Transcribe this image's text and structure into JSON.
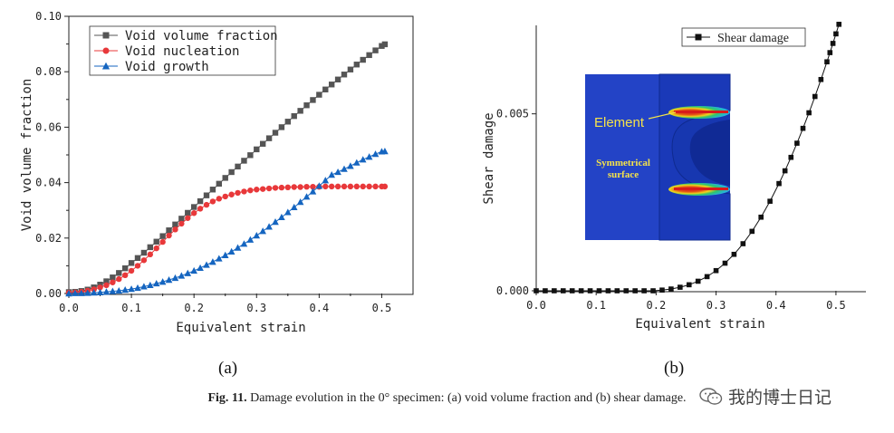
{
  "caption": {
    "fig_label": "Fig. 11.",
    "text": "Damage evolution in the 0° specimen: (a) void volume fraction and (b) shear damage."
  },
  "panel_labels": {
    "a": "(a)",
    "b": "(b)"
  },
  "watermark": {
    "text": "我的博士日记",
    "icon": "wechat-icon"
  },
  "chart_data": [
    {
      "type": "line",
      "xlabel": "Equivalent strain",
      "ylabel": "Void volume fraction",
      "xlim": [
        0.0,
        0.55
      ],
      "ylim": [
        0.0,
        0.1
      ],
      "xticks": [
        "0.0",
        "0.1",
        "0.2",
        "0.3",
        "0.4",
        "0.5"
      ],
      "yticks": [
        "0.00",
        "0.02",
        "0.04",
        "0.06",
        "0.08",
        "0.10"
      ],
      "legend_position": "top-left",
      "series": [
        {
          "name": "Void volume fraction",
          "color": "#555555",
          "marker": "square",
          "x": [
            0,
            0.01,
            0.02,
            0.03,
            0.04,
            0.05,
            0.06,
            0.07,
            0.08,
            0.09,
            0.1,
            0.11,
            0.12,
            0.13,
            0.14,
            0.15,
            0.16,
            0.17,
            0.18,
            0.19,
            0.2,
            0.21,
            0.22,
            0.23,
            0.24,
            0.25,
            0.26,
            0.27,
            0.28,
            0.29,
            0.3,
            0.31,
            0.32,
            0.33,
            0.34,
            0.35,
            0.36,
            0.37,
            0.38,
            0.39,
            0.4,
            0.41,
            0.42,
            0.43,
            0.44,
            0.45,
            0.46,
            0.47,
            0.48,
            0.49,
            0.5,
            0.505
          ],
          "y": [
            0.0005,
            0.0006,
            0.0009,
            0.0014,
            0.0022,
            0.0032,
            0.0044,
            0.0058,
            0.0074,
            0.0091,
            0.011,
            0.0128,
            0.0147,
            0.0167,
            0.0187,
            0.0207,
            0.0228,
            0.0249,
            0.027,
            0.0291,
            0.0312,
            0.0333,
            0.0354,
            0.0375,
            0.0396,
            0.0417,
            0.0438,
            0.0458,
            0.0479,
            0.0499,
            0.052,
            0.054,
            0.056,
            0.058,
            0.06,
            0.062,
            0.064,
            0.0659,
            0.0679,
            0.0698,
            0.0717,
            0.0736,
            0.0754,
            0.0772,
            0.079,
            0.0808,
            0.0826,
            0.0843,
            0.086,
            0.0877,
            0.0893,
            0.0899
          ]
        },
        {
          "name": "Void nucleation",
          "color": "#e8383a",
          "marker": "circle",
          "x": [
            0,
            0.01,
            0.02,
            0.03,
            0.04,
            0.05,
            0.06,
            0.07,
            0.08,
            0.09,
            0.1,
            0.11,
            0.12,
            0.13,
            0.14,
            0.15,
            0.16,
            0.17,
            0.18,
            0.19,
            0.2,
            0.21,
            0.22,
            0.23,
            0.24,
            0.25,
            0.26,
            0.27,
            0.28,
            0.29,
            0.3,
            0.31,
            0.32,
            0.33,
            0.34,
            0.35,
            0.36,
            0.37,
            0.38,
            0.39,
            0.4,
            0.41,
            0.42,
            0.43,
            0.44,
            0.45,
            0.46,
            0.47,
            0.48,
            0.49,
            0.5,
            0.505
          ],
          "y": [
            0.0003,
            0.0004,
            0.0006,
            0.001,
            0.0015,
            0.0022,
            0.003,
            0.004,
            0.0052,
            0.0066,
            0.0082,
            0.01,
            0.012,
            0.0141,
            0.0163,
            0.0186,
            0.0209,
            0.0231,
            0.0252,
            0.0272,
            0.029,
            0.0306,
            0.032,
            0.0332,
            0.0342,
            0.035,
            0.0357,
            0.0363,
            0.0368,
            0.0372,
            0.0375,
            0.0377,
            0.0379,
            0.0381,
            0.0382,
            0.0383,
            0.0384,
            0.0384,
            0.0385,
            0.0385,
            0.0385,
            0.0386,
            0.0386,
            0.0386,
            0.0386,
            0.0386,
            0.0386,
            0.0386,
            0.0386,
            0.0386,
            0.0386,
            0.0386
          ]
        },
        {
          "name": "Void growth",
          "color": "#1565c0",
          "marker": "triangle",
          "x": [
            0,
            0.01,
            0.02,
            0.03,
            0.04,
            0.05,
            0.06,
            0.07,
            0.08,
            0.09,
            0.1,
            0.11,
            0.12,
            0.13,
            0.14,
            0.15,
            0.16,
            0.17,
            0.18,
            0.19,
            0.2,
            0.21,
            0.22,
            0.23,
            0.24,
            0.25,
            0.26,
            0.27,
            0.28,
            0.29,
            0.3,
            0.31,
            0.32,
            0.33,
            0.34,
            0.35,
            0.36,
            0.37,
            0.38,
            0.39,
            0.4,
            0.41,
            0.42,
            0.43,
            0.44,
            0.45,
            0.46,
            0.47,
            0.48,
            0.49,
            0.5,
            0.505
          ],
          "y": [
            0.0,
            0.0001,
            0.0001,
            0.0002,
            0.0003,
            0.0004,
            0.0006,
            0.0008,
            0.001,
            0.0013,
            0.0016,
            0.002,
            0.0025,
            0.003,
            0.0036,
            0.0042,
            0.0049,
            0.0056,
            0.0064,
            0.0073,
            0.0082,
            0.0092,
            0.0103,
            0.0114,
            0.0126,
            0.0138,
            0.0151,
            0.0165,
            0.0179,
            0.0194,
            0.0209,
            0.0225,
            0.0241,
            0.0258,
            0.0275,
            0.0293,
            0.0311,
            0.033,
            0.0349,
            0.0368,
            0.0388,
            0.0408,
            0.0428,
            0.0438,
            0.0449,
            0.046,
            0.0472,
            0.0483,
            0.0493,
            0.0503,
            0.0512,
            0.0513
          ]
        }
      ]
    },
    {
      "type": "line",
      "xlabel": "Equivalent strain",
      "ylabel": "Shear damage",
      "xlim": [
        0.0,
        0.55
      ],
      "ylim": [
        0.0,
        0.0075
      ],
      "xticks": [
        "0.0",
        "0.1",
        "0.2",
        "0.3",
        "0.4",
        "0.5"
      ],
      "yticks": [
        "0.000",
        "0.005"
      ],
      "legend_position": "top-right",
      "series": [
        {
          "name": "Shear damage",
          "color": "#111111",
          "marker": "square",
          "x": [
            0,
            0.015,
            0.03,
            0.045,
            0.06,
            0.075,
            0.09,
            0.105,
            0.12,
            0.135,
            0.15,
            0.165,
            0.18,
            0.195,
            0.21,
            0.225,
            0.24,
            0.255,
            0.27,
            0.285,
            0.3,
            0.315,
            0.33,
            0.345,
            0.36,
            0.375,
            0.39,
            0.405,
            0.415,
            0.425,
            0.435,
            0.445,
            0.455,
            0.465,
            0.475,
            0.485,
            0.49,
            0.495,
            0.5,
            0.505
          ],
          "y": [
            0.0,
            0.0,
            0.0,
            0.0,
            0.0,
            0.0,
            0.0,
            0.0,
            0.0,
            0.0,
            0.0,
            0.0,
            0.0,
            0.0,
            2e-05,
            5e-05,
            0.0001,
            0.00017,
            0.00027,
            0.0004,
            0.00057,
            0.00078,
            0.00103,
            0.00133,
            0.00168,
            0.00208,
            0.00253,
            0.00303,
            0.00339,
            0.00377,
            0.00417,
            0.00459,
            0.00503,
            0.00549,
            0.00597,
            0.00647,
            0.00673,
            0.00699,
            0.00726,
            0.00753
          ]
        }
      ],
      "inset": {
        "labels": [
          "Element",
          "Symmetrical",
          "surface"
        ],
        "colors": {
          "background": "#1e3fc8",
          "hot": "#d81b1b",
          "warm": "#f1d21c",
          "mid": "#2fc46a",
          "cool": "#27b3d6"
        }
      }
    }
  ]
}
